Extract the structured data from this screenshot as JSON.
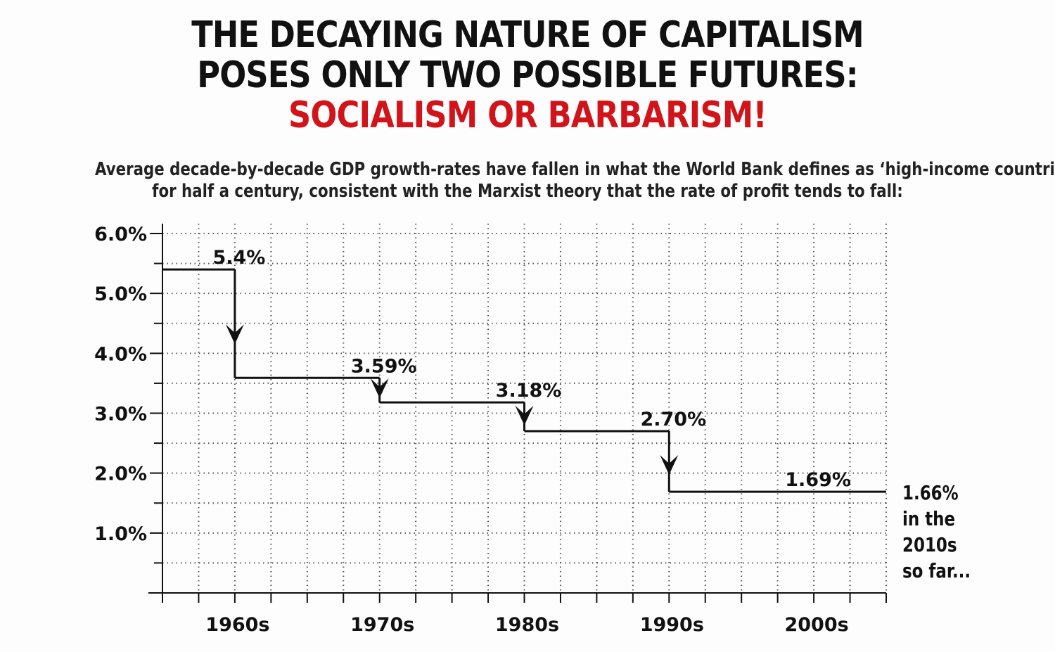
{
  "title": {
    "line1": "THE DECAYING NATURE OF CAPITALISM",
    "line2": "POSES ONLY TWO POSSIBLE FUTURES:",
    "line3": "SOCIALISM OR BARBARISM!"
  },
  "subtitle": {
    "line1": "Average decade-by-decade GDP growth-rates have fallen in what the World Bank defines as ‘high-income countries’",
    "line2": "for half a century, consistent with the Marxist theory that the rate of profit tends to fall:"
  },
  "annotation": {
    "line1": "1.66%",
    "line2": "in the",
    "line3": "2010s",
    "line4": "so far..."
  },
  "colors": {
    "accent_red": "#d0141a",
    "ink": "#111111",
    "grid": "#555555"
  },
  "chart_data": {
    "type": "line",
    "style": "step",
    "categories": [
      "1960s",
      "1970s",
      "1980s",
      "1990s",
      "2000s"
    ],
    "values": [
      5.4,
      3.59,
      3.18,
      2.7,
      1.69
    ],
    "data_labels": [
      "5.4%",
      "3.59%",
      "3.18%",
      "2.70%",
      "1.69%"
    ],
    "yticks": [
      1.0,
      2.0,
      3.0,
      4.0,
      5.0,
      6.0
    ],
    "ytick_labels": [
      "1.0%",
      "2.0%",
      "3.0%",
      "4.0%",
      "5.0%",
      "6.0%"
    ],
    "ylim": [
      0,
      6.0
    ],
    "grid": true,
    "arrows_between_steps": true
  }
}
